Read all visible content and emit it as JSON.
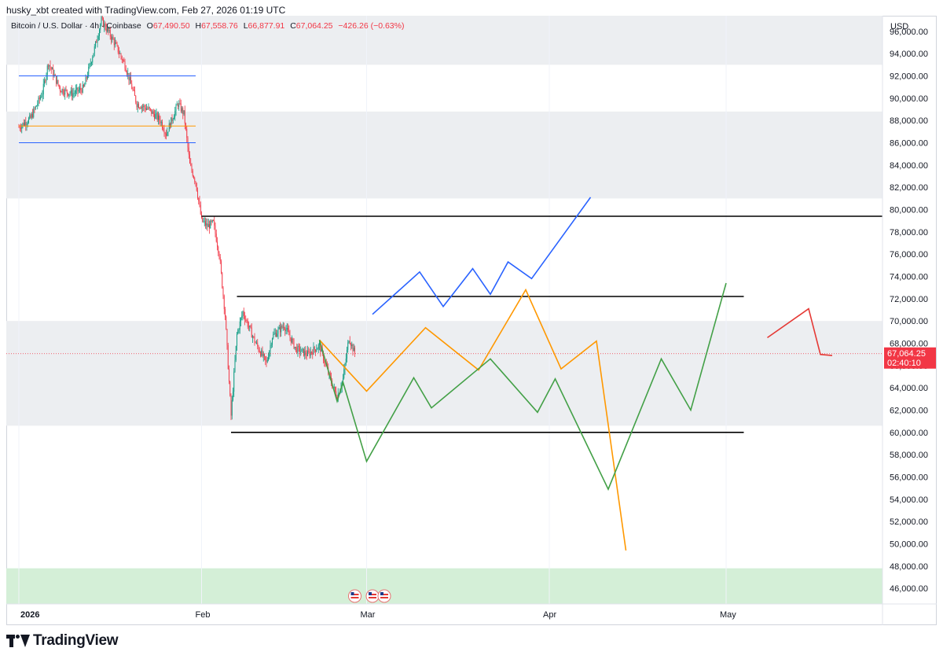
{
  "header": {
    "credit": "husky_xbt created with TradingView.com, Feb 27, 2026 01:19 UTC"
  },
  "legend": {
    "symbol": "Bitcoin / U.S. Dollar · 4h · Coinbase",
    "open_label": "O",
    "open": "67,490.50",
    "high_label": "H",
    "high": "67,558.76",
    "low_label": "L",
    "low": "66,877.91",
    "close_label": "C",
    "close": "67,064.25",
    "change": "−426.26 (−0.63%)"
  },
  "footer": {
    "brand": "TradingView"
  },
  "colors": {
    "up": "#089981",
    "down": "#f23645",
    "zone_gray": "#eceef1",
    "zone_green": "#d4efd7",
    "blue": "#2962ff",
    "orange": "#ff9800",
    "green": "#43a047",
    "black": "#000000",
    "red_note": "#e53935"
  },
  "chart_data": {
    "type": "candlestick",
    "currency_label": "USD",
    "x_axis_labels": [
      {
        "label": "2026",
        "date": "2026-01-01"
      },
      {
        "label": "Feb",
        "date": "2026-02-01"
      },
      {
        "label": "Mar",
        "date": "2026-03-01"
      },
      {
        "label": "Apr",
        "date": "2026-04-01"
      },
      {
        "label": "May",
        "date": "2026-05-01"
      }
    ],
    "y_ticks": [
      "96,000.00",
      "94,000.00",
      "92,000.00",
      "90,000.00",
      "88,000.00",
      "86,000.00",
      "84,000.00",
      "82,000.00",
      "80,000.00",
      "78,000.00",
      "76,000.00",
      "74,000.00",
      "72,000.00",
      "70,000.00",
      "68,000.00",
      "66,000.00",
      "64,000.00",
      "62,000.00",
      "60,000.00",
      "58,000.00",
      "56,000.00",
      "54,000.00",
      "52,000.00",
      "50,000.00",
      "48,000.00",
      "46,000.00"
    ],
    "y_range": [
      44600,
      97400
    ],
    "last_price": {
      "value": 67064.25,
      "label": "67,064.25",
      "countdown": "02:40:10"
    },
    "price_path": [
      [
        "2026-01-01",
        87400
      ],
      [
        "2026-01-03",
        88200
      ],
      [
        "2026-01-05",
        90500
      ],
      [
        "2026-01-06",
        93200
      ],
      [
        "2026-01-08",
        90800
      ],
      [
        "2026-01-10",
        90400
      ],
      [
        "2026-01-12",
        90900
      ],
      [
        "2026-01-14",
        94800
      ],
      [
        "2026-01-15",
        97000
      ],
      [
        "2026-01-17",
        95200
      ],
      [
        "2026-01-19",
        93000
      ],
      [
        "2026-01-21",
        89500
      ],
      [
        "2026-01-23",
        89000
      ],
      [
        "2026-01-25",
        88000
      ],
      [
        "2026-01-26",
        86800
      ],
      [
        "2026-01-28",
        89500
      ],
      [
        "2026-01-29",
        88600
      ],
      [
        "2026-01-30",
        84000
      ],
      [
        "2026-01-31",
        82500
      ],
      [
        "2026-02-01",
        79000
      ],
      [
        "2026-02-02",
        78500
      ],
      [
        "2026-02-03",
        78800
      ],
      [
        "2026-02-04",
        76000
      ],
      [
        "2026-02-05",
        70500
      ],
      [
        "2026-02-06",
        61500
      ],
      [
        "2026-02-07",
        68800
      ],
      [
        "2026-02-08",
        70800
      ],
      [
        "2026-02-10",
        68200
      ],
      [
        "2026-02-12",
        66200
      ],
      [
        "2026-02-13",
        68600
      ],
      [
        "2026-02-15",
        69600
      ],
      [
        "2026-02-17",
        67500
      ],
      [
        "2026-02-19",
        67000
      ],
      [
        "2026-02-21",
        67800
      ],
      [
        "2026-02-23",
        64500
      ],
      [
        "2026-02-24",
        63200
      ],
      [
        "2026-02-25",
        64800
      ],
      [
        "2026-02-26",
        68500
      ],
      [
        "2026-02-27",
        67064
      ]
    ],
    "zones": [
      {
        "color": "gray",
        "from": 93000,
        "to": 97400
      },
      {
        "color": "gray",
        "from": 81000,
        "to": 88800
      },
      {
        "color": "gray",
        "from": 60600,
        "to": 70000
      },
      {
        "color": "green",
        "from": 44600,
        "to": 47800
      }
    ],
    "horizontal_lines": [
      {
        "color": "blue",
        "value": 92000,
        "from": "2026-01-01",
        "to": "2026-01-31"
      },
      {
        "color": "orange",
        "value": 87500,
        "from": "2026-01-01",
        "to": "2026-01-31"
      },
      {
        "color": "blue",
        "value": 86000,
        "from": "2026-01-01",
        "to": "2026-01-31"
      },
      {
        "color": "black",
        "value": 79400,
        "from": "2026-02-01",
        "to": "2026-05-31"
      },
      {
        "color": "black",
        "value": 72200,
        "from": "2026-02-07",
        "to": "2026-05-04"
      },
      {
        "color": "black",
        "value": 60000,
        "from": "2026-02-06",
        "to": "2026-05-04"
      }
    ],
    "scenarios": [
      {
        "color": "blue",
        "points": [
          [
            "2026-03-02",
            70600
          ],
          [
            "2026-03-10",
            74400
          ],
          [
            "2026-03-14",
            71300
          ],
          [
            "2026-03-19",
            74700
          ],
          [
            "2026-03-22",
            72400
          ],
          [
            "2026-03-25",
            75300
          ],
          [
            "2026-03-29",
            73800
          ],
          [
            "2026-04-08",
            81100
          ]
        ]
      },
      {
        "color": "orange",
        "points": [
          [
            "2026-02-21",
            68300
          ],
          [
            "2026-03-01",
            63700
          ],
          [
            "2026-03-11",
            69400
          ],
          [
            "2026-03-20",
            65600
          ],
          [
            "2026-03-28",
            72800
          ],
          [
            "2026-04-03",
            65700
          ],
          [
            "2026-04-09",
            68200
          ],
          [
            "2026-04-14",
            49400
          ]
        ]
      },
      {
        "color": "green",
        "points": [
          [
            "2026-02-21",
            68300
          ],
          [
            "2026-02-24",
            62800
          ],
          [
            "2026-02-25",
            64500
          ],
          [
            "2026-03-01",
            57400
          ],
          [
            "2026-03-09",
            64900
          ],
          [
            "2026-03-12",
            62200
          ],
          [
            "2026-03-22",
            66600
          ],
          [
            "2026-03-30",
            61800
          ],
          [
            "2026-04-02",
            64800
          ],
          [
            "2026-04-11",
            54900
          ],
          [
            "2026-04-20",
            66600
          ],
          [
            "2026-04-25",
            62000
          ],
          [
            "2026-05-01",
            73400
          ]
        ]
      },
      {
        "color": "red_note",
        "points": [
          [
            "2026-05-08",
            68500
          ],
          [
            "2026-05-15",
            71100
          ],
          [
            "2026-05-17",
            67000
          ],
          [
            "2026-05-19",
            66900
          ]
        ]
      }
    ]
  }
}
